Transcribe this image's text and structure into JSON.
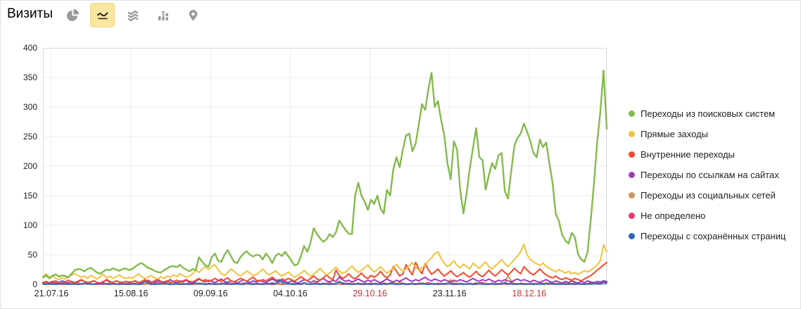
{
  "header": {
    "title": "Визиты"
  },
  "toolbar": {
    "selected_chart_type": "line",
    "types": [
      "pie",
      "line",
      "stacked-area",
      "columns",
      "map"
    ]
  },
  "chart_data": {
    "type": "line",
    "title": "Визиты",
    "ylim": [
      0,
      400
    ],
    "y_tick_step": 50,
    "grid": true,
    "legend_position": "right",
    "axis_label_color": "#222222",
    "weekend_label_color": "#cc3333",
    "x_ticks": [
      {
        "label": "21.07.16",
        "day_index": 2.65,
        "weekend": false
      },
      {
        "label": "15.08.16",
        "day_index": 27.65,
        "weekend": false
      },
      {
        "label": "09.09.16",
        "day_index": 52.65,
        "weekend": false
      },
      {
        "label": "04.10.16",
        "day_index": 77.65,
        "weekend": false
      },
      {
        "label": "29.10.16",
        "day_index": 102.65,
        "weekend": true
      },
      {
        "label": "23.11.16",
        "day_index": 127.65,
        "weekend": false
      },
      {
        "label": "18.12.16",
        "day_index": 152.65,
        "weekend": true
      }
    ],
    "series": [
      {
        "name": "Переходы из поисковых систем",
        "color": "#84ba4c",
        "values": [
          12,
          15,
          10,
          14,
          17,
          13,
          15,
          14,
          12,
          18,
          24,
          26,
          25,
          22,
          26,
          28,
          24,
          20,
          18,
          22,
          25,
          24,
          27,
          25,
          23,
          26,
          27,
          24,
          26,
          30,
          34,
          36,
          32,
          28,
          26,
          23,
          21,
          20,
          24,
          27,
          30,
          31,
          29,
          33,
          28,
          25,
          22,
          26,
          24,
          46,
          38,
          32,
          30,
          46,
          52,
          40,
          38,
          50,
          58,
          48,
          38,
          36,
          46,
          52,
          56,
          50,
          47,
          50,
          49,
          42,
          52,
          46,
          36,
          48,
          52,
          48,
          55,
          48,
          40,
          32,
          34,
          48,
          65,
          55,
          70,
          95,
          85,
          78,
          72,
          76,
          85,
          80,
          88,
          108,
          100,
          92,
          86,
          85,
          150,
          172,
          150,
          140,
          126,
          143,
          136,
          150,
          128,
          120,
          160,
          150,
          195,
          215,
          198,
          228,
          252,
          255,
          225,
          238,
          270,
          305,
          295,
          330,
          358,
          300,
          310,
          278,
          252,
          205,
          178,
          242,
          228,
          160,
          120,
          154,
          196,
          230,
          264,
          215,
          210,
          160,
          185,
          205,
          195,
          218,
          222,
          158,
          145,
          190,
          235,
          248,
          255,
          272,
          258,
          242,
          222,
          215,
          245,
          232,
          240,
          205,
          171,
          119,
          107,
          84,
          74,
          69,
          87,
          80,
          51,
          42,
          38,
          55,
          110,
          171,
          240,
          292,
          362,
          263
        ]
      },
      {
        "name": "Прямые заходы",
        "color": "#f2c23c",
        "values": [
          13,
          18,
          12,
          15,
          10,
          8,
          11,
          9,
          13,
          16,
          18,
          15,
          12,
          14,
          10,
          15,
          12,
          9,
          13,
          17,
          11,
          14,
          10,
          13,
          16,
          12,
          10,
          12,
          10,
          14,
          18,
          13,
          10,
          12,
          15,
          11,
          9,
          13,
          10,
          14,
          12,
          16,
          13,
          18,
          15,
          12,
          14,
          18,
          24,
          20,
          26,
          30,
          25,
          30,
          33,
          25,
          18,
          15,
          20,
          26,
          22,
          17,
          14,
          18,
          23,
          19,
          15,
          17,
          21,
          26,
          20,
          16,
          19,
          23,
          18,
          14,
          17,
          21,
          16,
          12,
          15,
          19,
          24,
          18,
          14,
          17,
          22,
          27,
          21,
          16,
          19,
          24,
          29,
          23,
          18,
          21,
          26,
          31,
          25,
          20,
          24,
          28,
          33,
          26,
          21,
          25,
          30,
          24,
          19,
          23,
          28,
          34,
          27,
          22,
          26,
          31,
          37,
          29,
          24,
          28,
          33,
          39,
          45,
          52,
          55,
          44,
          36,
          30,
          34,
          40,
          32,
          28,
          34,
          30,
          26,
          36,
          31,
          27,
          33,
          38,
          30,
          26,
          31,
          36,
          42,
          35,
          30,
          36,
          42,
          48,
          55,
          68,
          50,
          42,
          38,
          35,
          32,
          36,
          30,
          27,
          24,
          21,
          25,
          22,
          19,
          22,
          18,
          20,
          17,
          20,
          23,
          21,
          24,
          28,
          33,
          40,
          67,
          55
        ]
      },
      {
        "name": "Внутренние переходы",
        "color": "#f4482a",
        "values": [
          3,
          5,
          2,
          4,
          6,
          3,
          2,
          4,
          7,
          4,
          3,
          5,
          8,
          5,
          3,
          4,
          6,
          3,
          2,
          5,
          7,
          4,
          3,
          6,
          4,
          3,
          5,
          4,
          4,
          6,
          3,
          5,
          8,
          4,
          3,
          6,
          9,
          5,
          4,
          6,
          3,
          5,
          7,
          4,
          6,
          8,
          5,
          4,
          7,
          10,
          6,
          8,
          5,
          7,
          10,
          7,
          5,
          8,
          11,
          6,
          4,
          7,
          10,
          8,
          5,
          9,
          12,
          7,
          5,
          8,
          6,
          9,
          12,
          8,
          6,
          9,
          7,
          10,
          8,
          5,
          9,
          13,
          9,
          6,
          10,
          14,
          9,
          7,
          11,
          16,
          11,
          8,
          24,
          15,
          10,
          13,
          18,
          12,
          9,
          14,
          19,
          13,
          10,
          15,
          12,
          16,
          22,
          15,
          11,
          16,
          30,
          22,
          14,
          18,
          33,
          24,
          16,
          37,
          26,
          18,
          35,
          25,
          17,
          21,
          26,
          19,
          14,
          18,
          23,
          17,
          13,
          16,
          20,
          15,
          12,
          17,
          22,
          16,
          13,
          18,
          24,
          18,
          14,
          19,
          25,
          20,
          16,
          21,
          27,
          22,
          18,
          30,
          24,
          19,
          16,
          21,
          26,
          20,
          16,
          13,
          11,
          14,
          10,
          8,
          11,
          9,
          7,
          10,
          8,
          6,
          9,
          12,
          15,
          19,
          24,
          28,
          33,
          37
        ]
      },
      {
        "name": "Переходы по ссылкам на сайтах",
        "color": "#a13db8",
        "values": [
          2,
          4,
          3,
          5,
          2,
          3,
          6,
          4,
          2,
          5,
          3,
          4,
          7,
          5,
          3,
          4,
          6,
          3,
          2,
          4,
          8,
          5,
          3,
          6,
          4,
          2,
          5,
          3,
          4,
          6,
          3,
          2,
          5,
          7,
          4,
          3,
          6,
          4,
          2,
          5,
          8,
          4,
          3,
          6,
          4,
          7,
          3,
          2,
          5,
          9,
          6,
          4,
          7,
          5,
          3,
          6,
          9,
          5,
          3,
          6,
          4,
          2,
          5,
          8,
          5,
          3,
          6,
          4,
          7,
          5,
          3,
          6,
          9,
          6,
          4,
          7,
          5,
          3,
          6,
          4,
          2,
          5,
          8,
          6,
          3,
          6,
          4,
          7,
          10,
          6,
          4,
          7,
          5,
          12,
          8,
          5,
          7,
          4,
          6,
          9,
          6,
          4,
          7,
          5,
          8,
          5,
          3,
          6,
          9,
          6,
          4,
          7,
          5,
          8,
          11,
          7,
          5,
          8,
          6,
          9,
          12,
          8,
          6,
          9,
          7,
          5,
          8,
          6,
          4,
          7,
          5,
          8,
          6,
          4,
          7,
          10,
          7,
          5,
          8,
          6,
          9,
          6,
          4,
          7,
          5,
          8,
          6,
          4,
          7,
          9,
          6,
          8,
          6,
          4,
          7,
          5,
          3,
          6,
          8,
          5,
          3,
          6,
          4,
          2,
          5,
          3,
          6,
          4,
          2,
          5,
          3,
          6,
          4,
          3,
          5,
          4,
          6,
          5
        ]
      },
      {
        "name": "Переходы из социальных сетей",
        "color": "#cf9659",
        "values": [
          0,
          1,
          0,
          2,
          1,
          0,
          1,
          3,
          1,
          0,
          2,
          1,
          0,
          1,
          2,
          0,
          1,
          0,
          2,
          1,
          0,
          1,
          2,
          0,
          1,
          0,
          1,
          2,
          1,
          0,
          2,
          1,
          0,
          3,
          1,
          0,
          2,
          1,
          0,
          1,
          2,
          0,
          1,
          3,
          1,
          0,
          2,
          1,
          0,
          1,
          2,
          1,
          0,
          1,
          2,
          1,
          0,
          2,
          4,
          1,
          0,
          2,
          1,
          3,
          1,
          0,
          2,
          1,
          0,
          2,
          1,
          0,
          3,
          1,
          0,
          2,
          1,
          0,
          1,
          2,
          0,
          1,
          3,
          1,
          0,
          2,
          4,
          1,
          0,
          2,
          1,
          0,
          2,
          1,
          3,
          1,
          0,
          2,
          1,
          0,
          1,
          2,
          1,
          0,
          2,
          1,
          0,
          3,
          1,
          0,
          2,
          1,
          4,
          2,
          0,
          1,
          2,
          0,
          1,
          3,
          1,
          0,
          2,
          1,
          0,
          2,
          1,
          0,
          8,
          3,
          1,
          2,
          1,
          0,
          2,
          1,
          3,
          1,
          0,
          2,
          1,
          0,
          2,
          1,
          0,
          2,
          15,
          6,
          2,
          1,
          0,
          2,
          1,
          0,
          2,
          1,
          0,
          1,
          3,
          1,
          0,
          2,
          1,
          0,
          1,
          2,
          6,
          3,
          1,
          0,
          2,
          1,
          0,
          1,
          2,
          1,
          3,
          2
        ]
      },
      {
        "name": "Не определено",
        "color": "#e8396e",
        "values": [
          1,
          2,
          1,
          0,
          2,
          1,
          0,
          1,
          2,
          0,
          1,
          2,
          0,
          1,
          3,
          1,
          0,
          2,
          1,
          0,
          1,
          2,
          1,
          0,
          2,
          1,
          0,
          1,
          0,
          2,
          1,
          0,
          1,
          2,
          0,
          1,
          3,
          1,
          0,
          2,
          1,
          0,
          1,
          2,
          0,
          1,
          2,
          0,
          1,
          2,
          1,
          0,
          2,
          1,
          1,
          0,
          2,
          1,
          0,
          2,
          1,
          3,
          1,
          0,
          2,
          1,
          0,
          2,
          1,
          0,
          2,
          1,
          0,
          1,
          2,
          0,
          1,
          2,
          0,
          1,
          2,
          0,
          3,
          1,
          0,
          2,
          1,
          0,
          2,
          1,
          3,
          0,
          1,
          2,
          0,
          1,
          2,
          1,
          0,
          2,
          1,
          0,
          1,
          2,
          1,
          0,
          2,
          1,
          0,
          2,
          3,
          1,
          0,
          2,
          1,
          0,
          2,
          1,
          0,
          2,
          1,
          3,
          1,
          0,
          2,
          1,
          0,
          1,
          2,
          1,
          0,
          2,
          1,
          0,
          2,
          1,
          0,
          2,
          3,
          1,
          0,
          2,
          1,
          0,
          2,
          1,
          0,
          2,
          1,
          0,
          2,
          1,
          0,
          1,
          2,
          0,
          1,
          2,
          1,
          0,
          2,
          1,
          0,
          1,
          2,
          0,
          1,
          2,
          1,
          0,
          2,
          1,
          3,
          2,
          4,
          3,
          5,
          4
        ]
      },
      {
        "name": "Переходы с сохранённых страниц",
        "color": "#2f67bd",
        "values": [
          1,
          0,
          1,
          1,
          0,
          1,
          2,
          1,
          0,
          1,
          1,
          0,
          1,
          2,
          1,
          1,
          0,
          1,
          1,
          2,
          1,
          0,
          1,
          1,
          0,
          1,
          1,
          0,
          1,
          1,
          0,
          1,
          5,
          2,
          1,
          0,
          1,
          1,
          2,
          1,
          0,
          1,
          1,
          0,
          1,
          1,
          0,
          1,
          2,
          1,
          1,
          0,
          1,
          1,
          0,
          1,
          1,
          2,
          1,
          0,
          1,
          1,
          0,
          1,
          2,
          1,
          0,
          1,
          1,
          0,
          1,
          1,
          2,
          1,
          8,
          4,
          2,
          1,
          1,
          0,
          1,
          1,
          2,
          1,
          0,
          1,
          1,
          0,
          1,
          1,
          0,
          1,
          1,
          5,
          2,
          1,
          1,
          0,
          1,
          1,
          0,
          1,
          1,
          0,
          1,
          1,
          0,
          1,
          1,
          2,
          1,
          0,
          1,
          1,
          0,
          1,
          1,
          0,
          2,
          1,
          1,
          0,
          1,
          1,
          0,
          1,
          1,
          2,
          1,
          0,
          1,
          1,
          0,
          1,
          1,
          0,
          1,
          2,
          1,
          0,
          1,
          1,
          0,
          1,
          1,
          3,
          1,
          1,
          0,
          1,
          1,
          0,
          1,
          1,
          0,
          1,
          1,
          0,
          1,
          2,
          1,
          0,
          1,
          1,
          0,
          1,
          1,
          0,
          1,
          1,
          0,
          1,
          1,
          2,
          1,
          1,
          3,
          2
        ]
      }
    ]
  }
}
